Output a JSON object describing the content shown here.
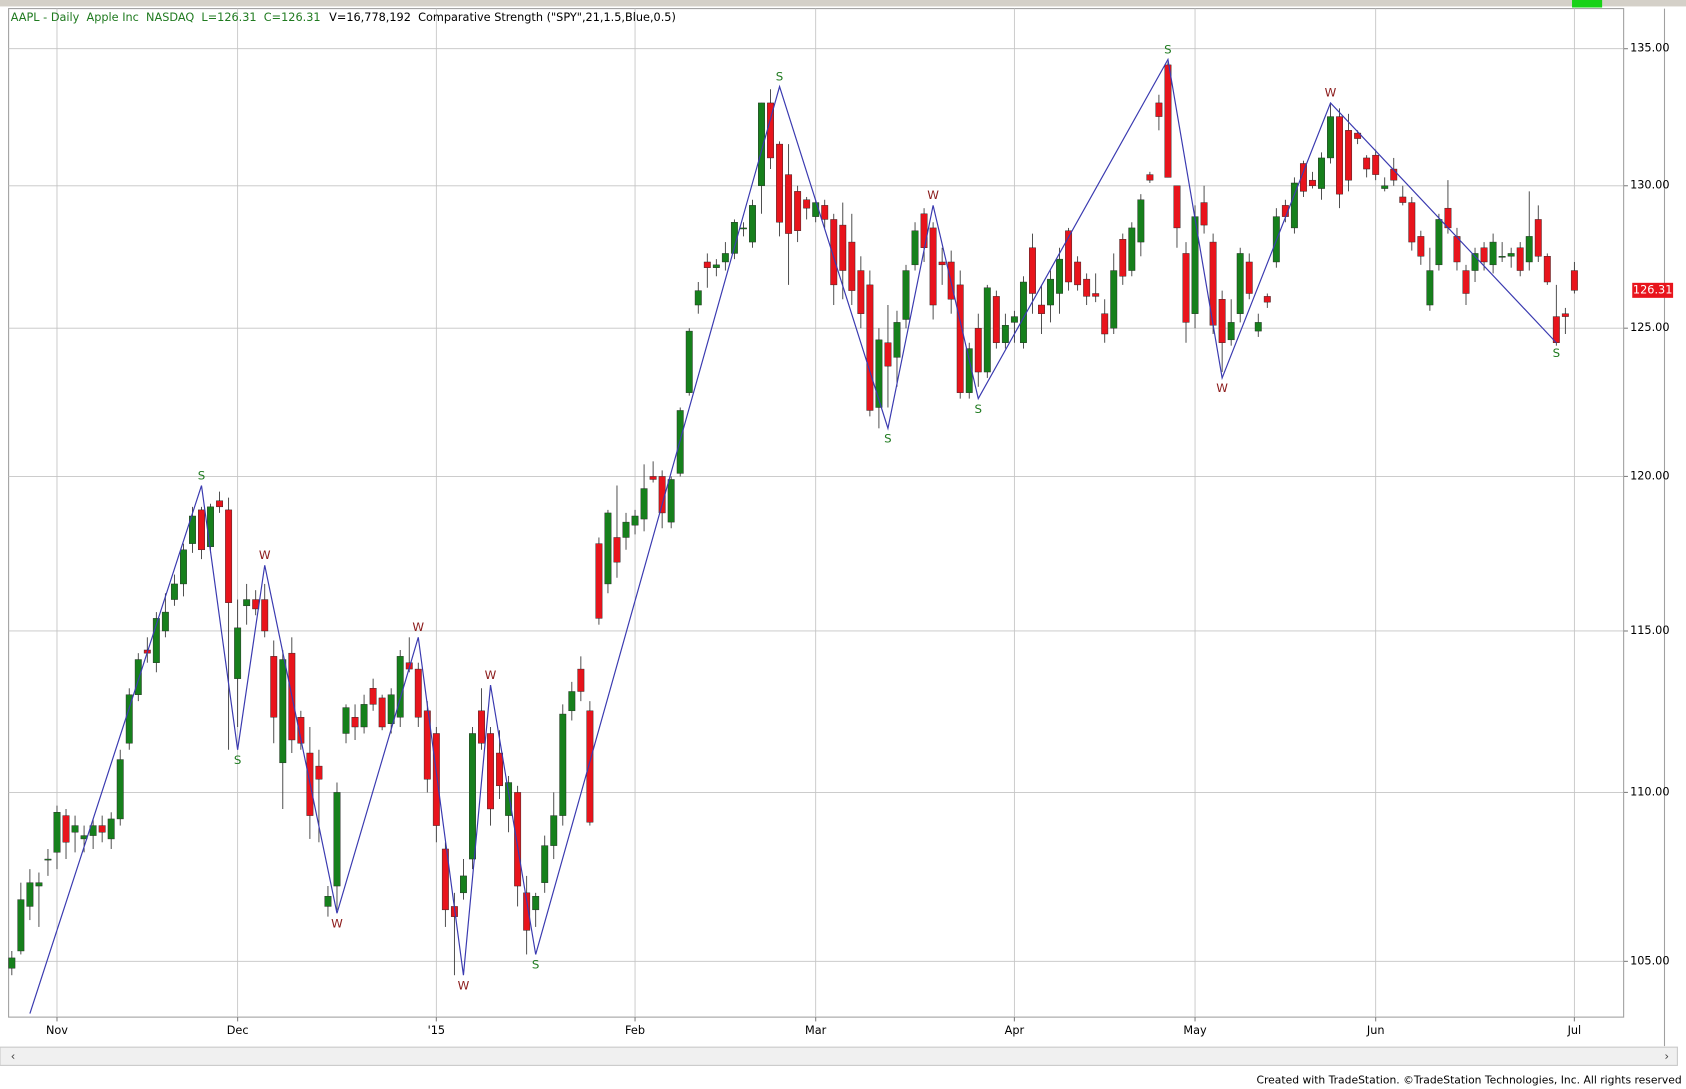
{
  "chart_data": {
    "type": "candlestick",
    "header_symbol": "AAPL - Daily  Apple Inc  NASDAQ  L=126.31  C=126.31",
    "header_indicator": "V=16,778,192  Comparative Strength (\"SPY\",21,1.5,Blue,0.5)",
    "footer": "Created with TradeStation. ©TradeStation Technologies, Inc. All rights reserved",
    "log_scale": true,
    "grid": true,
    "up_color": "#16801c",
    "down_color": "#e8141c",
    "zigzag_color": "#3a3ab0",
    "categories": [
      null,
      null,
      null,
      null,
      null,
      "Nov",
      null,
      null,
      null,
      null,
      null,
      null,
      null,
      null,
      null,
      null,
      null,
      null,
      null,
      null,
      null,
      null,
      null,
      null,
      null,
      "Dec",
      null,
      null,
      null,
      null,
      null,
      null,
      null,
      null,
      null,
      null,
      null,
      null,
      null,
      null,
      null,
      null,
      null,
      null,
      null,
      null,
      null,
      "'15",
      null,
      null,
      null,
      null,
      null,
      null,
      null,
      null,
      null,
      null,
      null,
      null,
      null,
      null,
      null,
      null,
      null,
      null,
      null,
      null,
      null,
      "Feb",
      null,
      null,
      null,
      null,
      null,
      null,
      null,
      null,
      null,
      null,
      null,
      null,
      null,
      null,
      null,
      null,
      null,
      null,
      null,
      "Mar",
      null,
      null,
      null,
      null,
      null,
      null,
      null,
      null,
      null,
      null,
      null,
      null,
      null,
      null,
      null,
      null,
      null,
      null,
      null,
      null,
      null,
      "Apr",
      null,
      null,
      null,
      null,
      null,
      null,
      null,
      null,
      null,
      null,
      null,
      null,
      null,
      null,
      null,
      null,
      null,
      null,
      null,
      "May",
      null,
      null,
      null,
      null,
      null,
      null,
      null,
      null,
      null,
      null,
      null,
      null,
      null,
      null,
      null,
      null,
      null,
      null,
      null,
      "Jun",
      null,
      null,
      null,
      null,
      null,
      null,
      null,
      null,
      null,
      null,
      null,
      null,
      null,
      null,
      null,
      null,
      null,
      null,
      null,
      null,
      null,
      "Jul"
    ],
    "candles": [
      [
        104.8,
        105.3,
        104.6,
        105.1
      ],
      [
        105.3,
        107.3,
        105.2,
        106.8
      ],
      [
        106.6,
        107.7,
        106.2,
        107.3
      ],
      [
        107.2,
        107.6,
        106.0,
        107.3
      ],
      [
        108.0,
        108.3,
        107.5,
        108.0
      ],
      [
        108.2,
        109.6,
        107.7,
        109.4
      ],
      [
        109.3,
        109.5,
        108.0,
        108.5
      ],
      [
        108.8,
        109.3,
        108.2,
        109.0
      ],
      [
        108.6,
        109.0,
        108.2,
        108.7
      ],
      [
        108.7,
        109.2,
        108.3,
        109.0
      ],
      [
        109.0,
        109.3,
        108.5,
        108.8
      ],
      [
        108.6,
        109.4,
        108.3,
        109.2
      ],
      [
        109.2,
        111.3,
        109.0,
        111.0
      ],
      [
        111.5,
        113.2,
        111.3,
        113.0
      ],
      [
        113.0,
        114.3,
        112.8,
        114.1
      ],
      [
        114.4,
        114.8,
        114.0,
        114.3
      ],
      [
        114.0,
        115.6,
        113.7,
        115.4
      ],
      [
        115.0,
        116.2,
        114.8,
        115.6
      ],
      [
        116.0,
        116.8,
        115.8,
        116.5
      ],
      [
        116.5,
        117.8,
        116.1,
        117.6
      ],
      [
        117.8,
        119.0,
        117.5,
        118.7
      ],
      [
        118.9,
        119.0,
        117.3,
        117.6
      ],
      [
        117.7,
        119.1,
        117.5,
        119.0
      ],
      [
        119.2,
        119.5,
        118.8,
        119.0
      ],
      [
        118.9,
        119.3,
        111.3,
        115.9
      ],
      [
        113.5,
        116.0,
        112.0,
        115.1
      ],
      [
        115.8,
        116.5,
        115.2,
        116.0
      ],
      [
        116.0,
        116.3,
        115.5,
        115.7
      ],
      [
        116.0,
        116.5,
        114.8,
        115.0
      ],
      [
        114.2,
        114.7,
        111.5,
        112.3
      ],
      [
        110.9,
        114.4,
        109.5,
        114.1
      ],
      [
        114.3,
        114.8,
        111.2,
        111.6
      ],
      [
        112.3,
        112.5,
        111.3,
        111.5
      ],
      [
        111.2,
        112.0,
        108.6,
        109.3
      ],
      [
        110.8,
        111.3,
        108.5,
        110.4
      ],
      [
        106.6,
        107.2,
        106.3,
        106.9
      ],
      [
        107.2,
        110.3,
        106.5,
        110.0
      ],
      [
        111.8,
        112.7,
        111.5,
        112.6
      ],
      [
        112.3,
        112.7,
        111.6,
        112.0
      ],
      [
        112.0,
        113.0,
        111.8,
        112.7
      ],
      [
        113.2,
        113.5,
        112.5,
        112.7
      ],
      [
        112.9,
        113.0,
        111.9,
        112.0
      ],
      [
        112.1,
        113.2,
        111.8,
        113.0
      ],
      [
        112.3,
        114.4,
        112.0,
        114.2
      ],
      [
        114.0,
        114.8,
        113.7,
        113.8
      ],
      [
        113.8,
        114.0,
        112.0,
        112.3
      ],
      [
        112.5,
        112.8,
        110.0,
        110.4
      ],
      [
        111.8,
        112.0,
        108.5,
        109.0
      ],
      [
        108.3,
        108.5,
        106.0,
        106.5
      ],
      [
        106.6,
        107.0,
        104.6,
        106.3
      ],
      [
        107.0,
        108.0,
        106.8,
        107.5
      ],
      [
        108.0,
        112.0,
        107.7,
        111.8
      ],
      [
        112.5,
        113.2,
        111.3,
        111.5
      ],
      [
        111.8,
        112.0,
        109.0,
        109.5
      ],
      [
        111.2,
        111.9,
        109.8,
        110.2
      ],
      [
        109.3,
        110.5,
        108.8,
        110.3
      ],
      [
        110.0,
        110.2,
        106.6,
        107.2
      ],
      [
        107.0,
        107.5,
        105.2,
        105.9
      ],
      [
        106.5,
        107.0,
        106.0,
        106.9
      ],
      [
        107.3,
        108.7,
        107.0,
        108.4
      ],
      [
        108.4,
        110.0,
        108.0,
        109.3
      ],
      [
        109.3,
        112.7,
        109.0,
        112.4
      ],
      [
        112.5,
        113.4,
        112.2,
        113.1
      ],
      [
        113.8,
        114.2,
        112.8,
        113.1
      ],
      [
        112.5,
        112.8,
        109.0,
        109.1
      ],
      [
        117.8,
        118.0,
        115.2,
        115.4
      ],
      [
        116.5,
        118.9,
        116.2,
        118.8
      ],
      [
        118.0,
        119.7,
        116.7,
        117.2
      ],
      [
        118.0,
        118.8,
        117.6,
        118.5
      ],
      [
        118.4,
        118.9,
        118.1,
        118.7
      ],
      [
        118.6,
        120.4,
        118.2,
        119.6
      ],
      [
        120.0,
        120.5,
        119.8,
        119.9
      ],
      [
        120.0,
        120.2,
        118.3,
        118.8
      ],
      [
        118.5,
        120.0,
        118.3,
        119.9
      ],
      [
        120.1,
        122.3,
        120.0,
        122.2
      ],
      [
        122.8,
        125.0,
        122.7,
        124.9
      ],
      [
        125.8,
        126.6,
        125.5,
        126.3
      ],
      [
        127.3,
        127.6,
        126.4,
        127.1
      ],
      [
        127.1,
        127.4,
        126.8,
        127.2
      ],
      [
        127.3,
        128.0,
        127.0,
        127.6
      ],
      [
        127.6,
        128.8,
        127.4,
        128.7
      ],
      [
        128.5,
        128.7,
        128.2,
        128.5
      ],
      [
        128.0,
        129.5,
        127.8,
        129.3
      ],
      [
        130.0,
        133.0,
        129.0,
        133.0
      ],
      [
        133.0,
        133.5,
        130.6,
        131.0
      ],
      [
        131.5,
        131.6,
        128.2,
        128.7
      ],
      [
        130.4,
        131.5,
        126.5,
        128.3
      ],
      [
        129.8,
        130.0,
        128.0,
        128.4
      ],
      [
        129.5,
        129.6,
        128.8,
        129.2
      ],
      [
        128.9,
        129.5,
        128.7,
        129.4
      ],
      [
        129.3,
        129.5,
        128.5,
        128.8
      ],
      [
        128.8,
        129.0,
        125.8,
        126.5
      ],
      [
        128.6,
        129.4,
        126.0,
        127.0
      ],
      [
        128.0,
        129.0,
        125.8,
        126.3
      ],
      [
        127.0,
        127.5,
        125.0,
        125.5
      ],
      [
        126.5,
        127.0,
        122.0,
        122.2
      ],
      [
        122.3,
        125.0,
        121.6,
        124.6
      ],
      [
        124.5,
        125.8,
        122.3,
        123.7
      ],
      [
        124.0,
        125.6,
        123.0,
        125.2
      ],
      [
        125.3,
        127.2,
        125.0,
        127.0
      ],
      [
        127.2,
        128.7,
        127.0,
        128.4
      ],
      [
        129.0,
        129.2,
        127.3,
        127.8
      ],
      [
        128.5,
        128.7,
        125.3,
        125.8
      ],
      [
        127.3,
        127.8,
        126.5,
        127.2
      ],
      [
        127.3,
        127.7,
        125.5,
        126.0
      ],
      [
        126.5,
        127.0,
        122.6,
        122.8
      ],
      [
        122.8,
        124.5,
        122.6,
        124.3
      ],
      [
        125.0,
        125.5,
        123.0,
        123.5
      ],
      [
        123.5,
        126.5,
        123.3,
        126.4
      ],
      [
        126.1,
        126.3,
        124.3,
        124.5
      ],
      [
        124.5,
        125.5,
        124.3,
        125.1
      ],
      [
        125.2,
        125.6,
        124.5,
        125.4
      ],
      [
        124.5,
        126.8,
        124.3,
        126.6
      ],
      [
        127.8,
        128.3,
        125.5,
        126.2
      ],
      [
        125.8,
        126.5,
        124.8,
        125.5
      ],
      [
        125.8,
        127.0,
        125.2,
        126.7
      ],
      [
        126.2,
        127.8,
        125.5,
        127.4
      ],
      [
        128.4,
        128.5,
        126.3,
        126.6
      ],
      [
        127.3,
        127.5,
        126.3,
        126.5
      ],
      [
        126.7,
        126.9,
        125.8,
        126.1
      ],
      [
        126.2,
        126.9,
        125.9,
        126.1
      ],
      [
        125.5,
        126.0,
        124.5,
        124.8
      ],
      [
        125.0,
        127.6,
        124.8,
        127.0
      ],
      [
        128.1,
        128.3,
        126.5,
        126.8
      ],
      [
        127.0,
        128.7,
        126.8,
        128.5
      ],
      [
        128.0,
        129.7,
        127.5,
        129.5
      ],
      [
        130.4,
        130.5,
        130.1,
        130.2
      ],
      [
        133.0,
        133.3,
        132.0,
        132.5
      ],
      [
        134.4,
        134.5,
        130.3,
        130.3
      ],
      [
        130.0,
        130.0,
        127.8,
        128.5
      ],
      [
        127.6,
        128.0,
        124.5,
        125.2
      ],
      [
        125.5,
        129.3,
        125.0,
        128.9
      ],
      [
        129.4,
        130.0,
        128.3,
        128.6
      ],
      [
        128.0,
        128.3,
        124.8,
        125.1
      ],
      [
        126.0,
        126.3,
        123.5,
        124.5
      ],
      [
        124.6,
        126.0,
        124.4,
        125.2
      ],
      [
        125.5,
        127.8,
        125.2,
        127.6
      ],
      [
        127.3,
        127.6,
        126.0,
        126.2
      ],
      [
        124.9,
        125.5,
        124.7,
        125.2
      ],
      [
        126.1,
        126.2,
        125.7,
        125.9
      ],
      [
        127.3,
        129.2,
        127.1,
        128.9
      ],
      [
        129.3,
        129.5,
        128.7,
        128.9
      ],
      [
        128.5,
        130.3,
        128.3,
        130.1
      ],
      [
        130.8,
        130.9,
        129.6,
        129.8
      ],
      [
        130.2,
        130.5,
        129.9,
        130.0
      ],
      [
        129.9,
        131.2,
        129.5,
        131.0
      ],
      [
        131.0,
        133.0,
        130.8,
        132.5
      ],
      [
        132.5,
        132.8,
        129.2,
        129.7
      ],
      [
        132.0,
        132.6,
        129.8,
        130.2
      ],
      [
        131.9,
        132.0,
        131.5,
        131.7
      ],
      [
        131.0,
        131.1,
        130.3,
        130.6
      ],
      [
        131.1,
        131.3,
        130.2,
        130.4
      ],
      [
        129.9,
        130.3,
        129.8,
        130.0
      ],
      [
        130.6,
        131.0,
        130.0,
        130.2
      ],
      [
        129.6,
        130.0,
        129.3,
        129.4
      ],
      [
        129.4,
        129.6,
        127.7,
        128.0
      ],
      [
        128.2,
        128.4,
        127.2,
        127.5
      ],
      [
        125.8,
        127.8,
        125.6,
        127.0
      ],
      [
        127.2,
        129.0,
        127.0,
        128.8
      ],
      [
        129.2,
        130.2,
        128.3,
        128.5
      ],
      [
        128.2,
        128.5,
        127.0,
        127.3
      ],
      [
        127.0,
        127.2,
        125.8,
        126.2
      ],
      [
        127.0,
        127.8,
        126.6,
        127.6
      ],
      [
        127.8,
        128.0,
        127.0,
        127.3
      ],
      [
        127.2,
        128.3,
        126.9,
        128.0
      ],
      [
        127.5,
        128.0,
        127.3,
        127.5
      ],
      [
        127.5,
        127.8,
        127.1,
        127.6
      ],
      [
        127.8,
        128.0,
        126.8,
        127.0
      ],
      [
        127.3,
        129.8,
        127.0,
        128.2
      ],
      [
        128.8,
        129.3,
        127.3,
        127.5
      ],
      [
        127.5,
        127.6,
        126.5,
        126.6
      ],
      [
        125.4,
        126.5,
        124.4,
        124.5
      ],
      [
        125.5,
        125.7,
        124.8,
        125.4
      ],
      [
        127.0,
        127.3,
        126.2,
        126.31
      ]
    ],
    "zigzag": [
      {
        "i": 2,
        "value": 103.5
      },
      {
        "i": 21,
        "value": 119.7,
        "label": "S"
      },
      {
        "i": 25,
        "value": 111.3,
        "label": "S"
      },
      {
        "i": 28,
        "value": 117.1,
        "label": "W"
      },
      {
        "i": 36,
        "value": 106.4,
        "label": "W"
      },
      {
        "i": 45,
        "value": 114.8,
        "label": "W"
      },
      {
        "i": 50,
        "value": 104.6,
        "label": "W"
      },
      {
        "i": 53,
        "value": 113.3,
        "label": "W"
      },
      {
        "i": 58,
        "value": 105.2,
        "label": "S"
      },
      {
        "i": 85,
        "value": 133.6,
        "label": "S"
      },
      {
        "i": 97,
        "value": 121.6,
        "label": "S"
      },
      {
        "i": 102,
        "value": 129.3,
        "label": "W"
      },
      {
        "i": 107,
        "value": 122.6,
        "label": "S"
      },
      {
        "i": 128,
        "value": 134.6,
        "label": "S"
      },
      {
        "i": 134,
        "value": 123.3,
        "label": "W"
      },
      {
        "i": 146,
        "value": 133.0,
        "label": "W"
      },
      {
        "i": 171,
        "value": 124.5,
        "label": "S"
      }
    ],
    "ylim": [
      103.4,
      136.5
    ],
    "yticks": [
      {
        "value": 105,
        "label": "105.00"
      },
      {
        "value": 110,
        "label": "110.00"
      },
      {
        "value": 115,
        "label": "115.00"
      },
      {
        "value": 120,
        "label": "120.00"
      },
      {
        "value": 125,
        "label": "125.00"
      },
      {
        "value": 130,
        "label": "130.00"
      },
      {
        "value": 135,
        "label": "135.00"
      }
    ]
  }
}
